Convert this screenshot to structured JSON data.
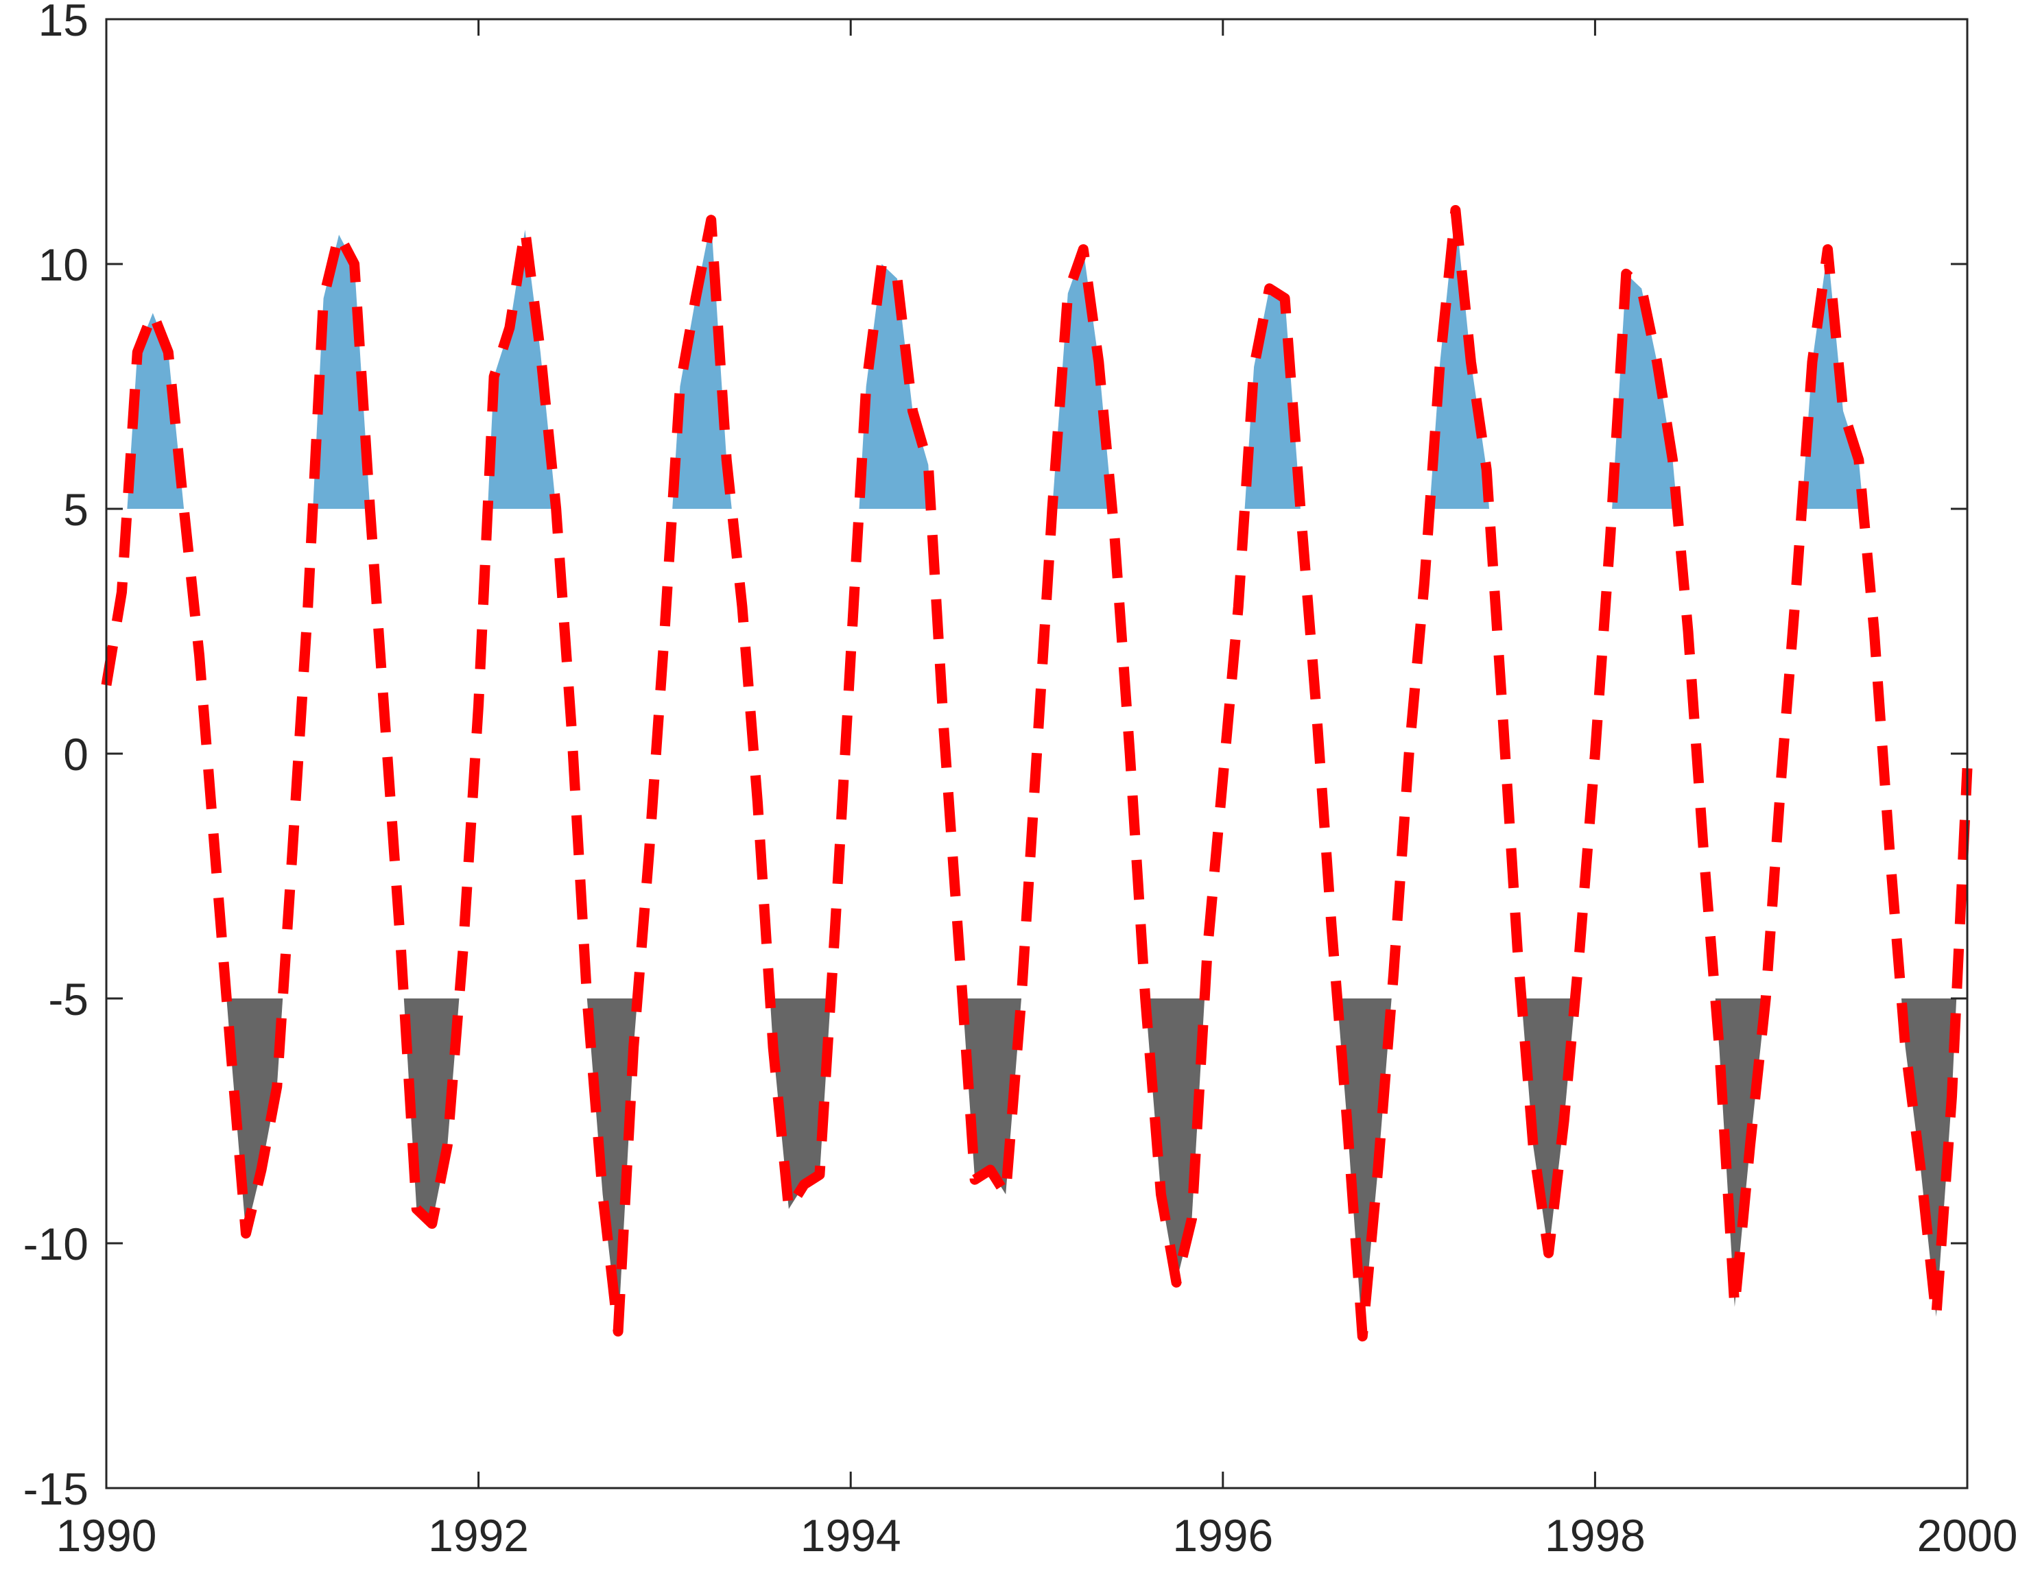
{
  "chart_data": {
    "type": "area",
    "xlabel": "",
    "ylabel": "",
    "xlim": [
      1990,
      2000
    ],
    "ylim": [
      -15,
      15
    ],
    "xticks": [
      1990,
      1992,
      1994,
      1996,
      1998,
      2000
    ],
    "yticks": [
      -15,
      -10,
      -5,
      0,
      5,
      10,
      15
    ],
    "xtick_labels": [
      "1990",
      "1992",
      "1994",
      "1996",
      "1998",
      "2000"
    ],
    "ytick_labels": [
      "-15",
      "-10",
      "-5",
      "0",
      "5",
      "10",
      "15"
    ],
    "grid": false,
    "upper_threshold": 5,
    "lower_threshold": -5,
    "colors": {
      "upper_fill": "#6BAED6",
      "lower_fill": "#666666",
      "line": "#FF0000",
      "axis": "#262626"
    },
    "series": [
      {
        "style": "dashed-line",
        "x": [
          1990.0,
          1990.083,
          1990.167,
          1990.25,
          1990.333,
          1990.417,
          1990.5,
          1990.583,
          1990.667,
          1990.75,
          1990.833,
          1990.917,
          1991.0,
          1991.083,
          1991.167,
          1991.25,
          1991.333,
          1991.417,
          1991.5,
          1991.583,
          1991.667,
          1991.75,
          1991.833,
          1991.917,
          1992.0,
          1992.083,
          1992.167,
          1992.25,
          1992.333,
          1992.417,
          1992.5,
          1992.583,
          1992.667,
          1992.75,
          1992.833,
          1992.917,
          1993.0,
          1993.083,
          1993.167,
          1993.25,
          1993.333,
          1993.417,
          1993.5,
          1993.583,
          1993.667,
          1993.75,
          1993.833,
          1993.917,
          1994.0,
          1994.083,
          1994.167,
          1994.25,
          1994.333,
          1994.417,
          1994.5,
          1994.583,
          1994.667,
          1994.75,
          1994.833,
          1994.917,
          1995.0,
          1995.083,
          1995.167,
          1995.25,
          1995.333,
          1995.417,
          1995.5,
          1995.583,
          1995.667,
          1995.75,
          1995.833,
          1995.917,
          1996.0,
          1996.083,
          1996.167,
          1996.25,
          1996.333,
          1996.417,
          1996.5,
          1996.583,
          1996.667,
          1996.75,
          1996.833,
          1996.917,
          1997.0,
          1997.083,
          1997.167,
          1997.25,
          1997.333,
          1997.417,
          1997.5,
          1997.583,
          1997.667,
          1997.75,
          1997.833,
          1997.917,
          1998.0,
          1998.083,
          1998.167,
          1998.25,
          1998.333,
          1998.417,
          1998.5,
          1998.583,
          1998.667,
          1998.75,
          1998.833,
          1998.917,
          1999.0,
          1999.083,
          1999.167,
          1999.25,
          1999.333,
          1999.417,
          1999.5,
          1999.583,
          1999.667,
          1999.75,
          1999.833,
          1999.917,
          2000.0
        ],
        "y": [
          1.4,
          3.3,
          8.2,
          9.0,
          8.2,
          5.0,
          2.0,
          -2.0,
          -6.0,
          -9.8,
          -8.5,
          -6.8,
          -2.0,
          3.0,
          9.3,
          10.6,
          10.0,
          5.0,
          0.5,
          -4.0,
          -9.3,
          -9.6,
          -8.0,
          -4.0,
          1.0,
          7.7,
          8.7,
          10.7,
          8.2,
          5.0,
          0.5,
          -5.0,
          -9.0,
          -11.8,
          -6.0,
          -2.0,
          2.5,
          7.5,
          9.3,
          10.9,
          6.0,
          3.0,
          -1.0,
          -6.0,
          -9.3,
          -8.8,
          -8.6,
          -3.5,
          2.0,
          7.5,
          10.0,
          9.7,
          7.0,
          5.9,
          0.5,
          -4.0,
          -8.7,
          -8.5,
          -9.0,
          -5.0,
          0.0,
          5.0,
          9.4,
          10.3,
          8.0,
          4.5,
          0.0,
          -5.0,
          -9.0,
          -10.8,
          -9.5,
          -4.0,
          -0.5,
          3.0,
          7.9,
          9.5,
          9.3,
          5.0,
          1.0,
          -3.5,
          -7.5,
          -11.9,
          -8.5,
          -4.5,
          0.0,
          3.5,
          8.0,
          11.1,
          8.0,
          5.8,
          1.0,
          -4.0,
          -8.0,
          -10.2,
          -7.5,
          -4.0,
          0.0,
          4.5,
          9.8,
          9.5,
          8.0,
          6.0,
          2.5,
          -2.0,
          -6.0,
          -11.3,
          -8.0,
          -5.0,
          -0.5,
          3.5,
          8.0,
          10.3,
          7.0,
          6.0,
          2.5,
          -2.0,
          -6.0,
          -8.5,
          -11.5,
          -7.0,
          -0.3
        ]
      }
    ]
  }
}
